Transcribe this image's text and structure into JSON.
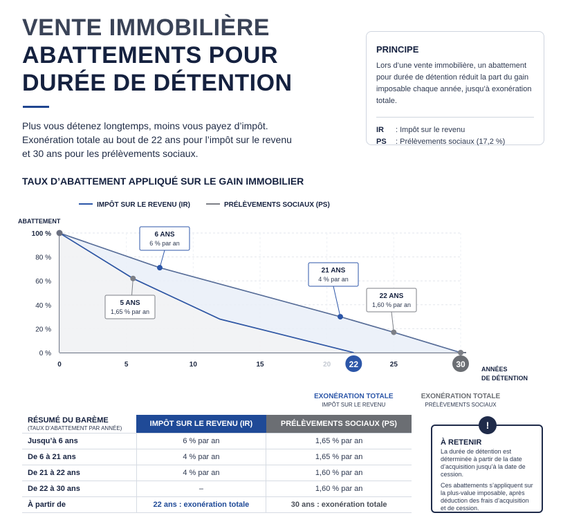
{
  "header": {
    "title_line1": "VENTE IMMOBILIÈRE",
    "title_line2": "ABATTEMENTS POUR",
    "title_line3": "DURÉE DE DÉTENTION",
    "intro": "Plus vous détenez longtemps, moins vous payez d’impôt. Exonération totale au bout de 22 ans pour l’impôt sur le revenu et 30 ans pour les prélèvements sociaux."
  },
  "principe": {
    "title": "PRINCIPE",
    "text": "Lors d’une vente immobilière, un abattement pour durée de détention réduit la part du gain imposable chaque année, jusqu’à exonération totale.",
    "defs": [
      {
        "key": "IR",
        "value": ": Impôt sur le revenu"
      },
      {
        "key": "PS",
        "value": ": Prélèvements sociaux (17,2 %)"
      }
    ]
  },
  "chart_title": "TAUX D’ABATTEMENT APPLIQUÉ SUR LE GAIN IMMOBILIER",
  "chart_data": {
    "type": "line",
    "ylabel": "ABATTEMENT",
    "xlabel": "ANNÉES DE DÉTENTION",
    "xlabel_line1": "ANNÉES",
    "xlabel_line2": "DE DÉTENTION",
    "xlim": [
      0,
      30
    ],
    "ylim": [
      0,
      100
    ],
    "x_ticks": [
      0,
      5,
      10,
      15,
      20,
      25
    ],
    "y_ticks": [
      0,
      20,
      40,
      60,
      80,
      100
    ],
    "y_tick_labels": [
      "0 %",
      "20 %",
      "40 %",
      "60 %",
      "80 %",
      "100 %"
    ],
    "grid": true,
    "legend_position": "top-left",
    "series": [
      {
        "name": "IMPÔT SUR LE REVENU (IR)",
        "color": "#2c56a8",
        "points": [
          [
            0,
            100
          ],
          [
            6,
            64
          ],
          [
            12,
            30
          ],
          [
            22,
            0
          ]
        ]
      },
      {
        "name": "PRÉLÈVEMENTS SOCIAUX (PS)",
        "color": "#7c7f86",
        "points": [
          [
            0,
            100
          ],
          [
            5,
            63
          ],
          [
            7.5,
            71
          ],
          [
            21,
            31
          ],
          [
            25,
            17
          ],
          [
            30,
            0
          ]
        ]
      }
    ],
    "markers": [
      {
        "x": 7.5,
        "y": 71,
        "color": "#2c56a8"
      },
      {
        "x": 5.5,
        "y": 62,
        "color": "#7c7f86"
      },
      {
        "x": 21,
        "y": 30,
        "color": "#2c56a8"
      },
      {
        "x": 25,
        "y": 17,
        "color": "#7c7f86"
      },
      {
        "x": 30,
        "y": 0,
        "color": "#7c7f86"
      }
    ],
    "annotations": [
      {
        "title": "6 ANS",
        "text": "6 % par an",
        "color": "#2c56a8",
        "at": [
          7.5,
          71
        ]
      },
      {
        "title": "5 ANS",
        "text": "1,65 % par an",
        "color": "#7c7f86",
        "at": [
          5.5,
          62
        ]
      },
      {
        "title": "21 ANS",
        "text": "4 % par an",
        "color": "#2c56a8",
        "at": [
          21,
          30
        ]
      },
      {
        "title": "22 ANS",
        "text": "1,60 % par an",
        "color": "#7c7f86",
        "at": [
          25,
          17
        ]
      }
    ],
    "end_badges": [
      {
        "value": "22",
        "x": 22,
        "color": "#2c56a8",
        "title": "EXONÉRATION TOTALE",
        "subtitle": "IMPÔT SUR LE REVENU"
      },
      {
        "value": "30",
        "x": 30,
        "color": "#6b6e73",
        "title": "EXONÉRATION TOTALE",
        "subtitle": "PRÉLÈVEMENTS SOCIAUX"
      }
    ]
  },
  "table": {
    "header_title": "RÉSUMÉ DU BARÈME",
    "header_subtitle": "(TAUX D’ABATTEMENT PAR ANNÉE)",
    "col_ir": "IMPÔT SUR LE REVENU (IR)",
    "col_ps": "PRÉLÈVEMENTS SOCIAUX (PS)",
    "rows": [
      {
        "label": "Jusqu’à 6 ans",
        "ir": "6 % par an",
        "ps": "1,65 % par an"
      },
      {
        "label": "De 6 à 21 ans",
        "ir": "4 % par an",
        "ps": "1,65 % par an"
      },
      {
        "label": "De 21 à 22 ans",
        "ir": "4 % par an",
        "ps": "1,60 % par an"
      },
      {
        "label": "De 22 à 30 ans",
        "ir": "–",
        "ps": "1,60 % par an"
      },
      {
        "label": "À partir de",
        "ir": "22 ans : exonération totale",
        "ps": "30 ans : exonération totale"
      }
    ]
  },
  "retenir": {
    "badge": "!",
    "title": "À RETENIR",
    "p1": "La durée de détention est déterminée à partir de la date d’acquisition jusqu’à la date de cession.",
    "p2": "Ces abattements s’appliquent sur la plus-value imposable, après déduction des frais d’acquisition et de cession."
  },
  "colors": {
    "navy": "#15213f",
    "ir_blue": "#2c56a8",
    "ps_grey": "#7c7f86"
  }
}
